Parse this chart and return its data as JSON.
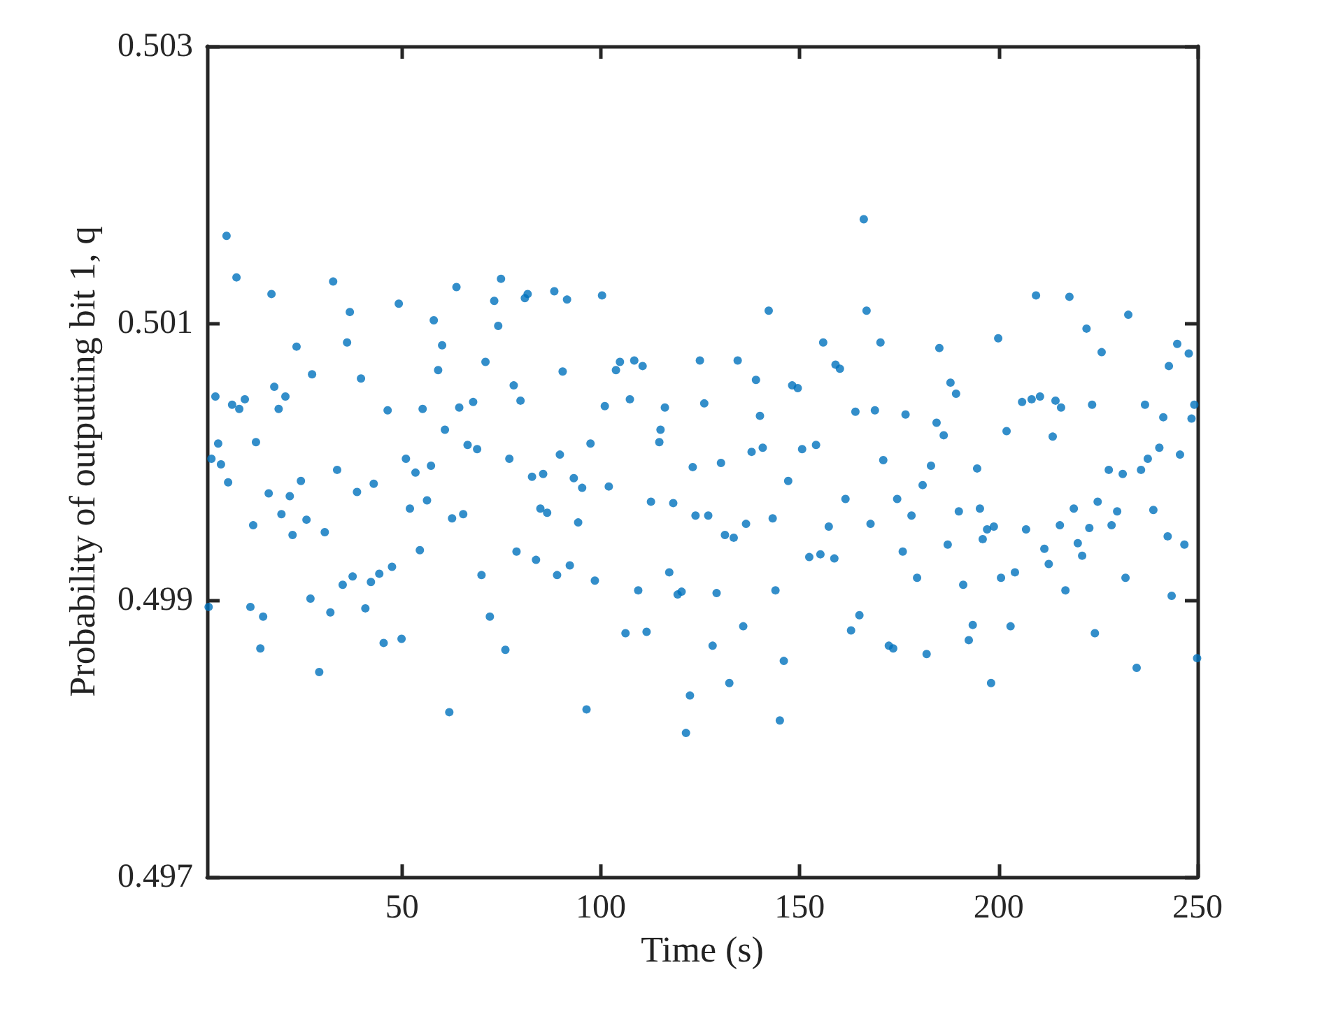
{
  "chart_data": {
    "type": "scatter",
    "xlabel": "Time (s)",
    "ylabel": "Probability of outputting bit 1, q",
    "xlim": [
      1,
      250
    ],
    "xticks": [
      50,
      100,
      150,
      200,
      250
    ],
    "ylim": [
      0.497,
      0.503
    ],
    "yticks": [
      0.497,
      0.499,
      0.501,
      0.503
    ],
    "grid": false,
    "marker": "circle",
    "series": [
      {
        "color": "#0072bd",
        "x": [
          1.4,
          2.1,
          3.1,
          3.8,
          4.5,
          5.9,
          6.3,
          7.3,
          8.4,
          9.1,
          10.5,
          11.9,
          12.6,
          13.3,
          14.4,
          15.1,
          16.5,
          17.2,
          17.9,
          19.0,
          19.7,
          20.7,
          21.8,
          22.5,
          23.5,
          24.6,
          26.0,
          27.0,
          27.4,
          29.2,
          30.6,
          32.0,
          32.7,
          33.7,
          35.1,
          36.2,
          36.9,
          37.6,
          38.7,
          39.7,
          40.8,
          42.2,
          42.9,
          44.3,
          45.4,
          46.4,
          47.5,
          49.2,
          49.9,
          51.0,
          52.0,
          53.4,
          54.5,
          55.2,
          56.3,
          57.3,
          58.0,
          59.1,
          60.1,
          60.8,
          61.9,
          62.6,
          63.7,
          64.4,
          65.4,
          66.5,
          67.9,
          68.9,
          70.0,
          71.0,
          72.1,
          73.2,
          74.2,
          74.9,
          76.0,
          77.0,
          78.1,
          78.8,
          79.8,
          80.9,
          81.6,
          82.7,
          83.7,
          84.8,
          85.5,
          86.5,
          88.3,
          89.0,
          89.7,
          90.4,
          91.5,
          92.2,
          93.2,
          94.3,
          95.3,
          96.4,
          97.4,
          98.5,
          100.3,
          101.0,
          102.0,
          103.8,
          104.8,
          106.2,
          107.3,
          108.4,
          109.4,
          110.5,
          111.5,
          112.6,
          114.7,
          115.0,
          116.1,
          117.2,
          118.2,
          119.3,
          120.3,
          121.4,
          122.4,
          123.1,
          123.8,
          124.9,
          126.0,
          127.0,
          128.1,
          129.1,
          130.2,
          131.2,
          132.3,
          133.4,
          134.4,
          135.8,
          136.5,
          137.9,
          139.0,
          140.0,
          140.7,
          142.2,
          143.2,
          143.9,
          145.0,
          146.0,
          147.1,
          148.1,
          149.5,
          150.6,
          152.4,
          154.1,
          155.2,
          155.9,
          157.3,
          158.7,
          159.0,
          160.1,
          161.5,
          162.9,
          164.0,
          165.0,
          166.1,
          166.8,
          167.8,
          168.9,
          170.3,
          171.0,
          172.4,
          173.5,
          174.5,
          175.9,
          176.6,
          178.1,
          179.5,
          180.9,
          181.9,
          183.0,
          184.4,
          185.1,
          186.2,
          187.2,
          187.9,
          189.3,
          190.0,
          191.1,
          192.5,
          193.5,
          194.6,
          195.3,
          196.0,
          197.1,
          198.1,
          198.8,
          199.9,
          200.6,
          202.0,
          203.0,
          204.1,
          205.9,
          206.9,
          208.3,
          209.4,
          210.4,
          211.5,
          212.6,
          213.6,
          214.3,
          215.7,
          215.4,
          216.8,
          217.8,
          218.9,
          219.9,
          221.0,
          222.1,
          222.8,
          223.5,
          224.2,
          224.9,
          225.9,
          227.7,
          228.4,
          229.8,
          231.2,
          231.9,
          232.6,
          234.7,
          235.8,
          236.8,
          237.5,
          238.9,
          240.4,
          241.4,
          242.5,
          242.8,
          243.5,
          244.9,
          245.6,
          246.7,
          247.8,
          248.5,
          249.2,
          249.9
        ],
        "values": [
          0.49895,
          0.50002,
          0.50047,
          0.50013,
          0.49998,
          0.50163,
          0.49985,
          0.50041,
          0.50133,
          0.50038,
          0.50045,
          0.49895,
          0.49954,
          0.50014,
          0.49865,
          0.49888,
          0.49977,
          0.50121,
          0.50054,
          0.50038,
          0.49962,
          0.50047,
          0.49975,
          0.49947,
          0.50083,
          0.49986,
          0.49958,
          0.49901,
          0.50063,
          0.49848,
          0.49949,
          0.49891,
          0.5013,
          0.49994,
          0.49911,
          0.50086,
          0.50108,
          0.49917,
          0.49978,
          0.5006,
          0.49894,
          0.49913,
          0.49984,
          0.49919,
          0.49869,
          0.50037,
          0.49924,
          0.50114,
          0.49872,
          0.50002,
          0.49966,
          0.49992,
          0.49936,
          0.50038,
          0.49972,
          0.49997,
          0.50102,
          0.50066,
          0.50084,
          0.50023,
          0.49819,
          0.49959,
          0.50126,
          0.50039,
          0.49962,
          0.50012,
          0.50043,
          0.50009,
          0.49918,
          0.50072,
          0.49888,
          0.50116,
          0.50098,
          0.50132,
          0.49864,
          0.50002,
          0.50055,
          0.49935,
          0.50044,
          0.50118,
          0.50121,
          0.49989,
          0.49929,
          0.49966,
          0.49991,
          0.49963,
          0.50123,
          0.49918,
          0.50005,
          0.50065,
          0.50117,
          0.49925,
          0.49988,
          0.49956,
          0.49981,
          0.49821,
          0.50013,
          0.49914,
          0.5012,
          0.5004,
          0.49982,
          0.50066,
          0.50072,
          0.49876,
          0.50045,
          0.50073,
          0.49907,
          0.50069,
          0.49877,
          0.49971,
          0.50014,
          0.50023,
          0.50039,
          0.4992,
          0.4997,
          0.49904,
          0.49906,
          0.49804,
          0.49831,
          0.49996,
          0.49961,
          0.50073,
          0.50042,
          0.49961,
          0.49867,
          0.49905,
          0.49999,
          0.49947,
          0.4984,
          0.49945,
          0.50073,
          0.49881,
          0.49955,
          0.50007,
          0.50059,
          0.50033,
          0.5001,
          0.50109,
          0.49959,
          0.49907,
          0.49813,
          0.49856,
          0.49986,
          0.50055,
          0.50053,
          0.50009,
          0.49931,
          0.50012,
          0.49933,
          0.50086,
          0.49953,
          0.4993,
          0.5007,
          0.50067,
          0.49973,
          0.49878,
          0.50036,
          0.49889,
          0.50175,
          0.50109,
          0.49955,
          0.50037,
          0.50086,
          0.50001,
          0.49867,
          0.49865,
          0.49973,
          0.49935,
          0.50034,
          0.49961,
          0.49916,
          0.49983,
          0.49861,
          0.49997,
          0.50028,
          0.50082,
          0.50019,
          0.4994,
          0.50057,
          0.50049,
          0.49964,
          0.49911,
          0.49871,
          0.49882,
          0.49995,
          0.49966,
          0.49944,
          0.49951,
          0.4984,
          0.49953,
          0.50089,
          0.49916,
          0.50022,
          0.49881,
          0.4992,
          0.50043,
          0.49951,
          0.50045,
          0.5012,
          0.50047,
          0.49937,
          0.49926,
          0.50018,
          0.50044,
          0.50039,
          0.49954,
          0.49907,
          0.50119,
          0.49966,
          0.49941,
          0.49932,
          0.50096,
          0.49952,
          0.50041,
          0.49876,
          0.49971,
          0.50079,
          0.49994,
          0.49954,
          0.49964,
          0.49991,
          0.49916,
          0.50106,
          0.49851,
          0.49994,
          0.50041,
          0.50002,
          0.49965,
          0.5001,
          0.50032,
          0.49946,
          0.50069,
          0.49903,
          0.50085,
          0.50005,
          0.4994,
          0.50078,
          0.50031,
          0.50041,
          0.49858
        ]
      }
    ]
  }
}
